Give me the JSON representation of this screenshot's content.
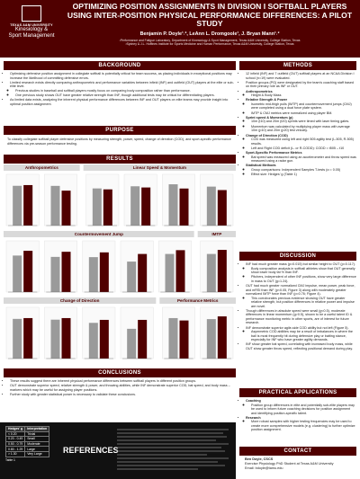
{
  "header": {
    "title": "OPTIMIZING POSITION ASSIGNMENTS IN DIVISION I SOFTBALL PLAYERS USING INTER-POSITION PHYSICAL PERFORMANCE DIFFERENCES: A PILOT STUDY",
    "authors": "Benjamin P. Doyle¹˒², LeAnn L. Dromgoole¹, J. Bryan Mann¹˒²",
    "affiliations": [
      "¹Performance and Fatigue Laboratory, Department of Kinesiology & Sport Management, Texas A&M University, College Station, Texas",
      "²Sydney & J.L. Huffines Institute for Sports Medicine and Human Performance, Texas A&M University, College Station, Texas"
    ],
    "logo_university": "TEXAS A&M UNIVERSITY",
    "logo_department": [
      "Kinesiology &",
      "Sport Management"
    ]
  },
  "background": {
    "title": "BACKGROUND",
    "items": [
      {
        "text": "Optimizing defensive position assignment in collegiate softball is potentially critical for team success, as placing individuals in exceptional positions may increase the likelihood of committing defensive errors."
      },
      {
        "text": "Limited research exists directly comparing anthropometric and performance variables between infield (INF) and outfield (OUT) players at the elite or sub-elite level.",
        "sub": [
          "Previous studies in baseball and softball players mostly focus on comparing body composition rather than performance.",
          "One previous study shows OUT have greater relative strength than INF, though additional tests may be critical for differentiating players."
        ]
      },
      {
        "text": "As limited data exists, analyzing the inherent physical performance differences between INF and OUT players on elite teams may provide insight into optimal position assignment."
      }
    ]
  },
  "purpose": {
    "title": "PURPOSE",
    "text": "To classify collegiate softball player defensive positions by measuring strength, power, speed, change of direction (COD), and sport-specific performance differences via pre-season performance testing."
  },
  "results": {
    "title": "RESULTS",
    "colors": [
      "#9a9a9a",
      "#500000"
    ],
    "groups": [
      {
        "title": "Anthropometrics",
        "charts": [
          {
            "values": [
              167,
              170
            ],
            "ylim": [
              0,
              200
            ]
          },
          {
            "values": [
              75,
              66
            ],
            "ylim": [
              0,
              90
            ]
          }
        ]
      },
      {
        "title": "Linear Speed & Momentum",
        "charts": [
          {
            "values": [
              1.95,
              1.9
            ],
            "ylim": [
              0,
              2.5
            ]
          },
          {
            "values": [
              3.3,
              3.2
            ],
            "ylim": [
              0,
              4
            ]
          },
          {
            "values": [
              390,
              350
            ],
            "ylim": [
              0,
              450
            ]
          },
          {
            "values": [
              450,
              410
            ],
            "ylim": [
              0,
              550
            ]
          }
        ]
      },
      {
        "title": "Countermovement Jump",
        "charts": [
          {
            "values": [
              2.3,
              2.6
            ],
            "ylim": [
              0,
              3
            ]
          },
          {
            "values": [
              48,
              55
            ],
            "ylim": [
              0,
              65
            ]
          },
          {
            "values": [
              22,
              25
            ],
            "ylim": [
              0,
              30
            ]
          },
          {
            "values": [
              0.32,
              0.4
            ],
            "ylim": [
              0,
              0.5
            ]
          },
          {
            "values": [
              40,
              44
            ],
            "ylim": [
              0,
              50
            ]
          }
        ]
      },
      {
        "title": "IMTP",
        "charts": [
          {
            "values": [
              28,
              31
            ],
            "ylim": [
              0,
              35
            ]
          }
        ]
      },
      {
        "title": "Change of Direction",
        "charts": [
          {
            "values": [
              2.5,
              2.55
            ],
            "ylim": [
              0,
              3
            ]
          },
          {
            "values": [
              2.45,
              2.55
            ],
            "ylim": [
              0,
              3
            ]
          },
          {
            "values": [
              0.6,
              0.65
            ],
            "ylim": [
              0,
              0.8
            ]
          },
          {
            "values": [
              0.5,
              0.65
            ],
            "ylim": [
              0,
              0.8
            ]
          }
        ]
      },
      {
        "title": "Performance Metrics",
        "charts": [
          {
            "values": [
              68,
              64
            ],
            "ylim": [
              0,
              80
            ]
          },
          {
            "values": [
              58,
              62
            ],
            "ylim": [
              0,
              70
            ]
          }
        ]
      }
    ]
  },
  "conclusions": {
    "title": "CONCLUSIONS",
    "items": [
      {
        "text": "These results suggest there are inherent physical performance differences between softball players in different position groups."
      },
      {
        "text": "OUT demonstrate superior speed, relative strength & power, and throwing abilities, while INF demonstrate superior COD, bat speed, and body mass – markers which may be useful for assigning player positions."
      },
      {
        "text": "Further study with greater statistical power is necessary to validate these conclusions."
      }
    ]
  },
  "table": {
    "header": [
      "Hedges' g",
      "Interpretation"
    ],
    "rows": [
      [
        "< 0.20",
        "Trivial"
      ],
      [
        "0.20 - 0.49",
        "Small"
      ],
      [
        "0.50 - 0.79",
        "Moderate"
      ],
      [
        "0.80 - 1.29",
        "Large"
      ],
      [
        "> 1.30",
        "Very Large"
      ]
    ],
    "caption": "Table 1"
  },
  "references": {
    "title": "REFERENCES"
  },
  "methods": {
    "title": "METHODS",
    "items": [
      {
        "text": "12 infield (INF) and 7 outfield (OUT) softball players at an NCAA Division I school (n=19) were evaluated."
      },
      {
        "text": "Position groups (PG) were designated by the team's coaching staff based on their primary role as INF or OUT."
      },
      {
        "text": "Anthropometrics",
        "sub": [
          "Height & Body Mass"
        ]
      },
      {
        "text": "Relative Strength & Power",
        "sub": [
          "Isometric mid-thigh pulls (IMTP) and countermovement jumps (CMJ) were completed using a dual force plate system.",
          "IMTP & CMJ metrics were normalized using player BM."
        ]
      },
      {
        "text": "Sprint speed & Momentum (p)",
        "sub": [
          "10m (t10) and 20m (t20) sprints were timed with laser timing gates.",
          "Momentum was calculated by multiplying player mass with average 10m (p10) and 20m (p20) test velocity."
        ]
      },
      {
        "text": "Change of Direction (COD)",
        "sub": [
          "COD was measured using left and right 505 agility test (L-505, R-505) results.",
          "Left and Right COD deficit (L- or R-CODD): CODD = t505 – t10"
        ]
      },
      {
        "text": "Sport-Specific Performance Metrics",
        "sub": [
          "Bat speed was measured using an accelerometer and throw speed was measured using a radar gun."
        ]
      },
      {
        "text": "Statistical Methods",
        "sub": [
          "Group comparisons: Independent Samples T-tests (α = 0.05)",
          "Effect size: Hedges' g (Table 1)"
        ]
      }
    ]
  },
  "discussion": {
    "title": "DISCUSSION",
    "items": [
      {
        "text": "INF had much greater mass (p=0.015) but similar height to OUT (p=0.117).",
        "sub": [
          "Body composition analysis in softball athletes show that OUT generally show lower body fat % than INF.",
          "Pitchers, independent of other INF positions, show very large difference in mass to OUT (g=1.24)."
        ]
      },
      {
        "text": "OUT had much greater normalized CMJ impulse, mean power, peak force, and mRSI than INF (p<0.05, Figure 3) along with moderately greater normalized IMTP force than INF (p=0.76; Figure 4).",
        "sub": [
          "This corroborates previous evidence showing OUT have greater relative strength, but position differences in relative power and impulse are novel."
        ]
      },
      {
        "text": "Though differences in absolute speed were small (g<0.5), moderate differences in linear momentum (g>0.5), shown to be a useful talent ID & performance monitoring metric in other sports, are of interest for future research."
      },
      {
        "text": "INF demonstrate superior agile-side COD ability but not left (Figure 5).",
        "sub": [
          "Asymmetric COD abilities may be a result of imbalances in where the ball is most frequently hit during defensive play or batting stance, especially for INF who have greater agility demands."
        ]
      },
      {
        "text": "INF show greater bat speed, correlating with increased body mass, while OUT show greater throw speed, reflecting positional demand during play."
      }
    ]
  },
  "practical": {
    "title": "PRACTICAL APPLICATIONS",
    "items": [
      {
        "text": "Coaching",
        "sub": [
          "Position group differences in elite and potentially sub-elite players may be used to inform future coaching decisions for position assignment and identifying position-specific talent."
        ]
      },
      {
        "text": "Research",
        "sub": [
          "More robust samples with higher testing frequencies may be used to create more comprehensive models (e.g. clustering) to further optimize position assignment."
        ]
      }
    ]
  },
  "contact": {
    "title": "CONTACT",
    "lines": [
      "Ben Doyle, CSCS",
      "Exercise Physiology PhD Student at Texas A&M University",
      "Email: bdoyle@tamu.edu"
    ]
  }
}
